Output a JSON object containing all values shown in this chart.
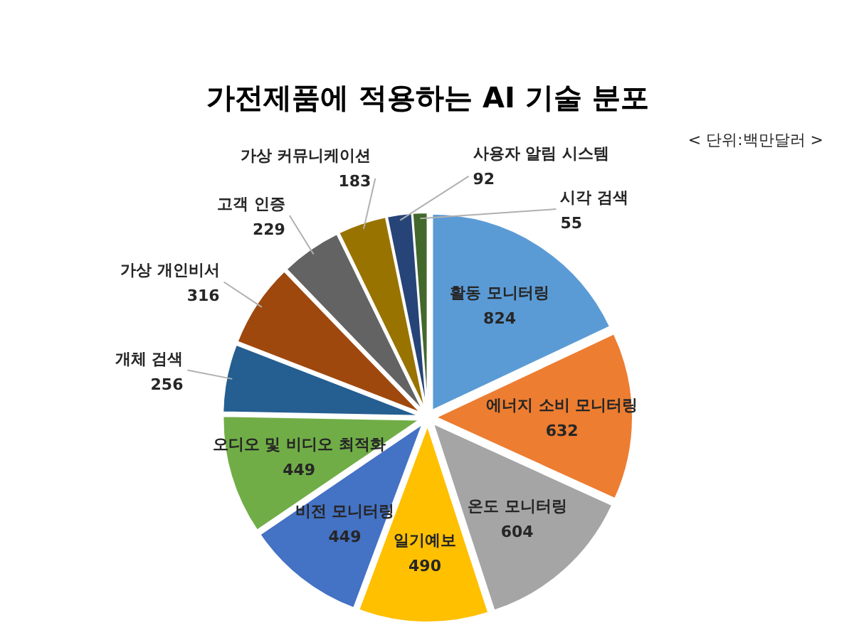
{
  "chart_data": {
    "type": "pie",
    "title": "가전제품에 적용하는 AI 기술 분포",
    "subtitle": "< 단위:백만달러 >",
    "categories": [
      "활동 모니터링",
      "에너지 소비 모니터링",
      "온도 모니터링",
      "일기예보",
      "비전 모니터링",
      "오디오 및 비디오 최적화",
      "개체 검색",
      "가상 개인비서",
      "고객 인증",
      "가상 커뮤니케이션",
      "사용자 알림 시스템",
      "시각 검색"
    ],
    "values": [
      824,
      632,
      604,
      490,
      449,
      449,
      256,
      316,
      229,
      183,
      92,
      55
    ],
    "colors": [
      "#5b9bd5",
      "#ed7d31",
      "#a5a5a5",
      "#ffc000",
      "#4472c4",
      "#70ad47",
      "#255e91",
      "#9e480e",
      "#636363",
      "#997300",
      "#264478",
      "#43682b"
    ],
    "data_labels": true
  }
}
